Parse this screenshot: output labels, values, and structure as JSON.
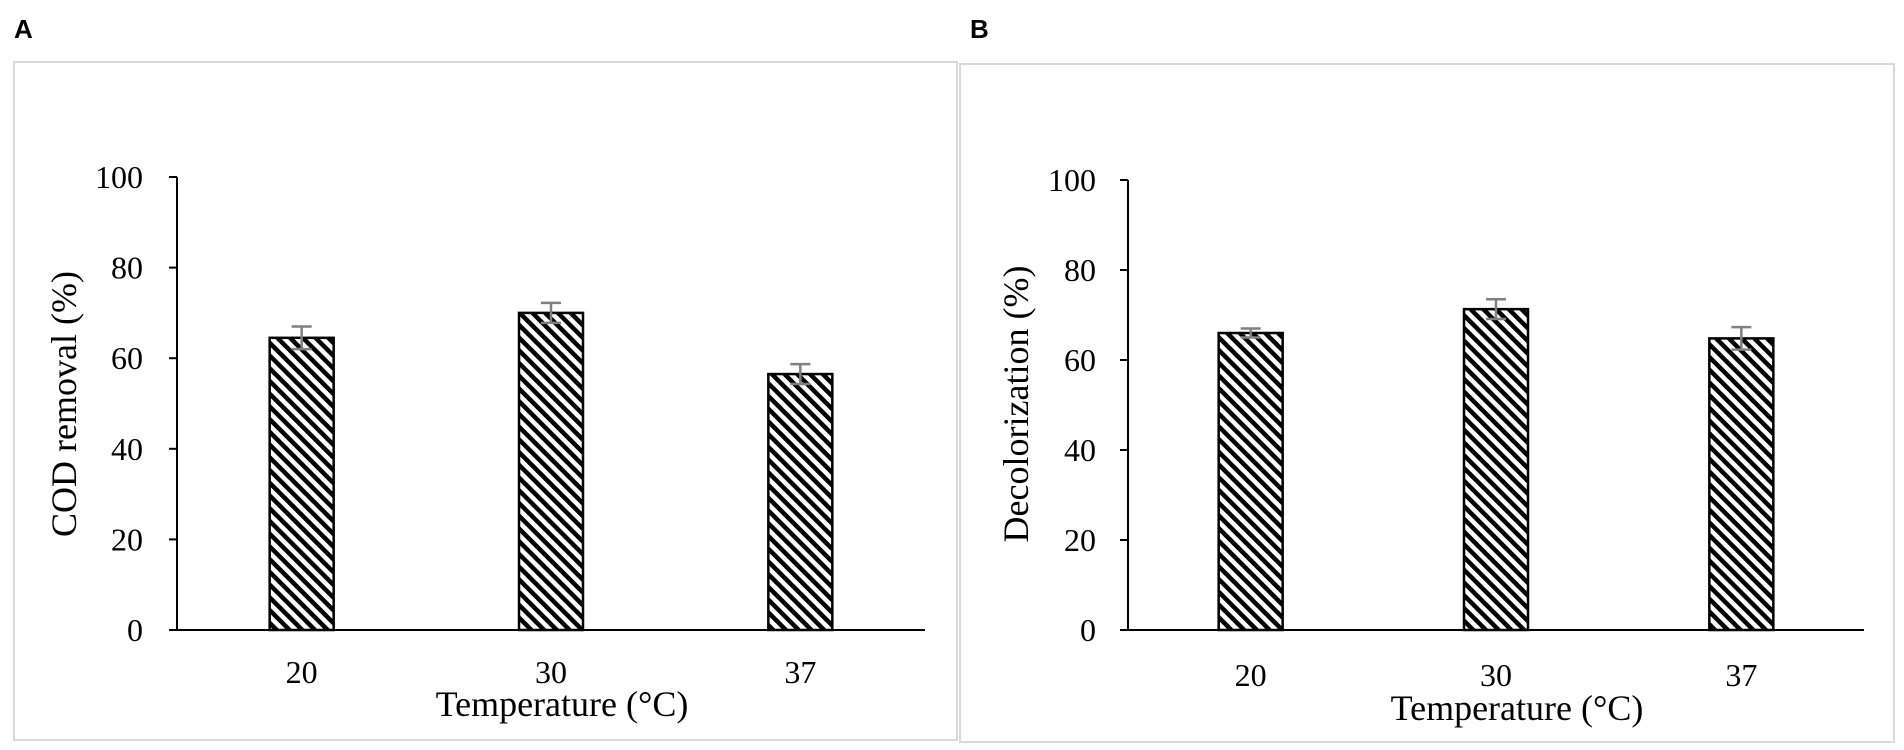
{
  "panels": [
    "A",
    "B"
  ],
  "chart_data": [
    {
      "type": "bar",
      "panel": "A",
      "categories": [
        "20",
        "30",
        "37"
      ],
      "values": [
        64.5,
        70.0,
        56.5
      ],
      "errors": [
        2.5,
        2.2,
        2.2
      ],
      "xlabel": "Temperature (°C)",
      "ylabel": "COD removal (%)",
      "ylim": [
        0,
        100
      ],
      "yticks": [
        "0",
        "20",
        "40",
        "60",
        "80",
        "100"
      ],
      "grid": false,
      "bar_fill": "diagonal-hatch",
      "bar_color": "#000000",
      "error_color": "#808080"
    },
    {
      "type": "bar",
      "panel": "B",
      "categories": [
        "20",
        "30",
        "37"
      ],
      "values": [
        66.0,
        71.3,
        64.8
      ],
      "errors": [
        1.0,
        2.2,
        2.5
      ],
      "xlabel": "Temperature (°C)",
      "ylabel": "Decolorization (%)",
      "ylim": [
        0,
        100
      ],
      "yticks": [
        "0",
        "20",
        "40",
        "60",
        "80",
        "100"
      ],
      "grid": false,
      "bar_fill": "diagonal-hatch",
      "bar_color": "#000000",
      "error_color": "#808080"
    }
  ]
}
